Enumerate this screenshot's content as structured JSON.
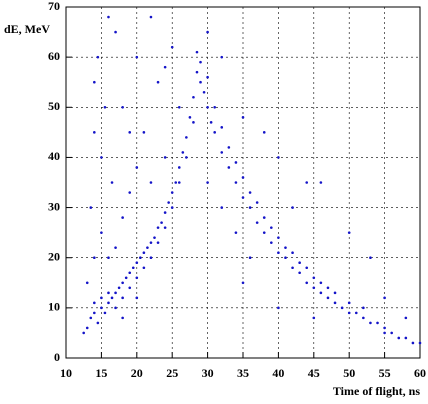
{
  "chart_data": {
    "type": "scatter",
    "xlabel": "Time of flight, ns",
    "ylabel": "dE, MeV",
    "x": [
      13,
      13.5,
      14,
      14,
      14.5,
      15,
      15,
      15.5,
      16,
      16,
      16.5,
      17,
      17,
      17.5,
      18,
      18,
      18.5,
      19,
      19,
      19.5,
      20,
      20,
      20.5,
      21,
      21,
      21.5,
      22,
      22,
      22.5,
      23,
      23,
      23.5,
      24,
      24,
      24.5,
      25,
      25,
      25.5,
      26,
      26,
      26.5,
      27,
      27,
      27.5,
      28,
      28,
      28.5,
      28.5,
      29,
      29,
      29.5,
      30,
      30,
      30.5,
      31,
      31,
      32,
      32,
      33,
      33,
      34,
      34,
      35,
      35,
      36,
      36,
      37,
      37,
      38,
      38,
      39,
      39,
      40,
      40,
      41,
      41,
      42,
      42,
      43,
      43,
      44,
      44,
      45,
      45,
      46,
      46,
      47,
      47,
      48,
      48,
      49,
      50,
      50,
      51,
      52,
      52,
      53,
      54,
      55,
      55,
      56,
      57,
      58,
      59,
      60,
      13.5,
      14,
      14.5,
      15,
      15.5,
      16,
      16.5,
      14,
      15,
      17,
      18,
      19,
      20,
      21,
      22,
      23,
      24,
      25,
      26,
      19,
      18,
      17,
      20,
      22,
      24,
      30,
      32,
      35,
      38,
      40,
      44,
      46,
      50,
      53,
      42,
      36,
      34,
      30,
      32,
      45,
      40,
      35,
      55,
      58,
      13,
      14,
      16,
      18,
      20,
      12.5
    ],
    "values": [
      6,
      8,
      9,
      11,
      7,
      10,
      12,
      9,
      11,
      13,
      12,
      13,
      10,
      14,
      15,
      12,
      16,
      17,
      14,
      18,
      19,
      16,
      20,
      21,
      18,
      22,
      23,
      20,
      24,
      26,
      23,
      27,
      29,
      26,
      31,
      33,
      30,
      35,
      38,
      35,
      41,
      44,
      40,
      48,
      52,
      47,
      57,
      61,
      55,
      59,
      53,
      50,
      56,
      47,
      45,
      50,
      41,
      46,
      38,
      42,
      35,
      39,
      32,
      36,
      30,
      33,
      27,
      31,
      25,
      28,
      23,
      26,
      21,
      24,
      20,
      22,
      18,
      21,
      17,
      19,
      15,
      18,
      14,
      16,
      13,
      15,
      12,
      14,
      11,
      13,
      10,
      9,
      11,
      9,
      8,
      10,
      7,
      7,
      6,
      5,
      5,
      4,
      4,
      3,
      3,
      30,
      45,
      60,
      25,
      50,
      68,
      35,
      55,
      40,
      65,
      50,
      33,
      60,
      45,
      68,
      55,
      40,
      62,
      50,
      45,
      28,
      22,
      38,
      35,
      58,
      65,
      60,
      48,
      45,
      40,
      35,
      35,
      25,
      20,
      30,
      20,
      25,
      35,
      30,
      8,
      10,
      15,
      12,
      8,
      15,
      20,
      20,
      8,
      12,
      5
    ],
    "color": "#1414c8",
    "xlim": [
      10,
      60
    ],
    "xticks": [
      10,
      15,
      20,
      25,
      30,
      35,
      40,
      45,
      50,
      55,
      60
    ],
    "ylim": [
      0,
      70
    ],
    "yticks": [
      0,
      10,
      20,
      30,
      40,
      50,
      60,
      70
    ],
    "grid": true
  }
}
